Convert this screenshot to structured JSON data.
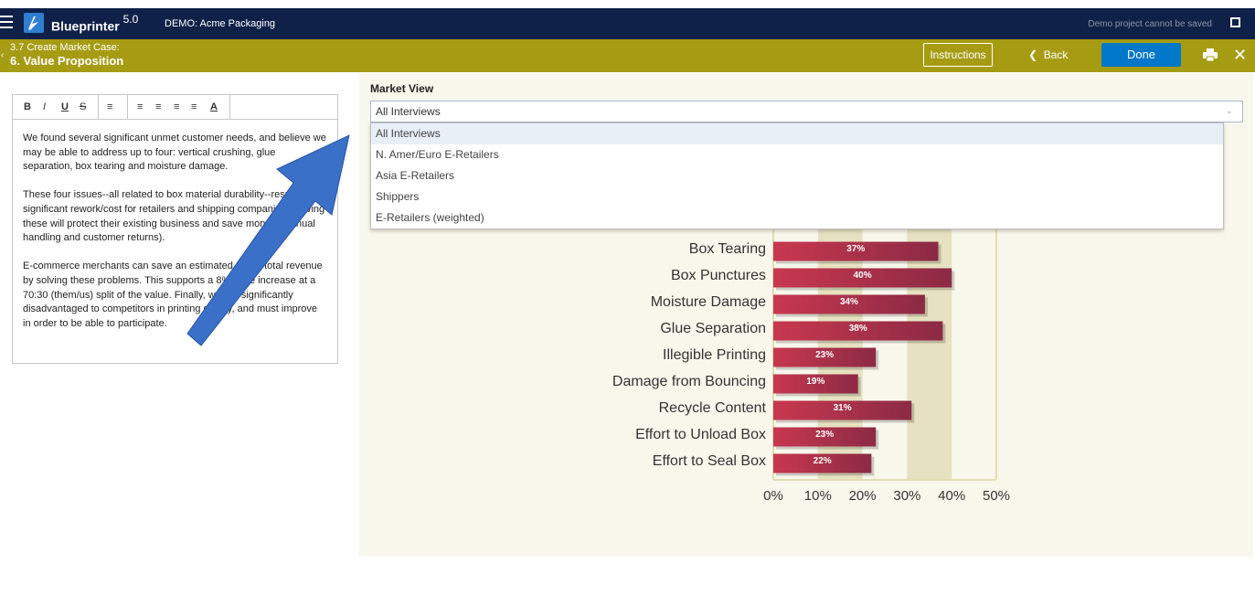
{
  "app": {
    "brand": "Blueprinter",
    "version": "5.0",
    "project": "DEMO: Acme Packaging",
    "demo_note": "Demo project cannot be saved"
  },
  "subheader": {
    "crumb": "3.7 Create Market Case:",
    "title": "6. Value Proposition",
    "instructions_label": "Instructions",
    "back_label": "Back",
    "done_label": "Done"
  },
  "editor": {
    "toolbar": [
      "B",
      "I",
      "U",
      "S"
    ],
    "paragraphs": [
      "We found several significant unmet customer needs, and believe we may be able to address up to four: vertical crushing, glue separation, box tearing and moisture damage.",
      "These four issues--all related to box material durability--result in significant rework/cost for retailers and shipping companies. Solving these will protect their existing business and save money (manual handling and customer returns).",
      "E-commerce merchants can save an estimated 3% of total revenue by solving these problems. This supports a 8% price increase at a 70:30 (them/us) split of the value. Finally, we are significantly disadvantaged to competitors in printing quality, and must improve in order to be able to participate."
    ]
  },
  "market_view": {
    "label": "Market View",
    "selected": "All Interviews",
    "options": [
      "All Interviews",
      "N. Amer/Euro E-Retailers",
      "Asia E-Retailers",
      "Shippers",
      "E-Retailers (weighted)"
    ]
  },
  "chart_data": {
    "type": "bar",
    "orientation": "horizontal",
    "categories": [
      "Box Tearing",
      "Box Punctures",
      "Moisture Damage",
      "Glue Separation",
      "Illegible Printing",
      "Damage from Bouncing",
      "Recycle Content",
      "Effort to Unload Box",
      "Effort to Seal Box"
    ],
    "values": [
      37,
      40,
      34,
      38,
      23,
      19,
      31,
      23,
      22
    ],
    "value_labels": [
      "37%",
      "40%",
      "34%",
      "38%",
      "23%",
      "19%",
      "31%",
      "23%",
      "22%"
    ],
    "xticks": [
      "0%",
      "10%",
      "20%",
      "30%",
      "40%",
      "50%"
    ],
    "xlim": [
      0,
      50
    ],
    "bar_color": "#c8384f",
    "band_color": "#e6e1c0"
  }
}
